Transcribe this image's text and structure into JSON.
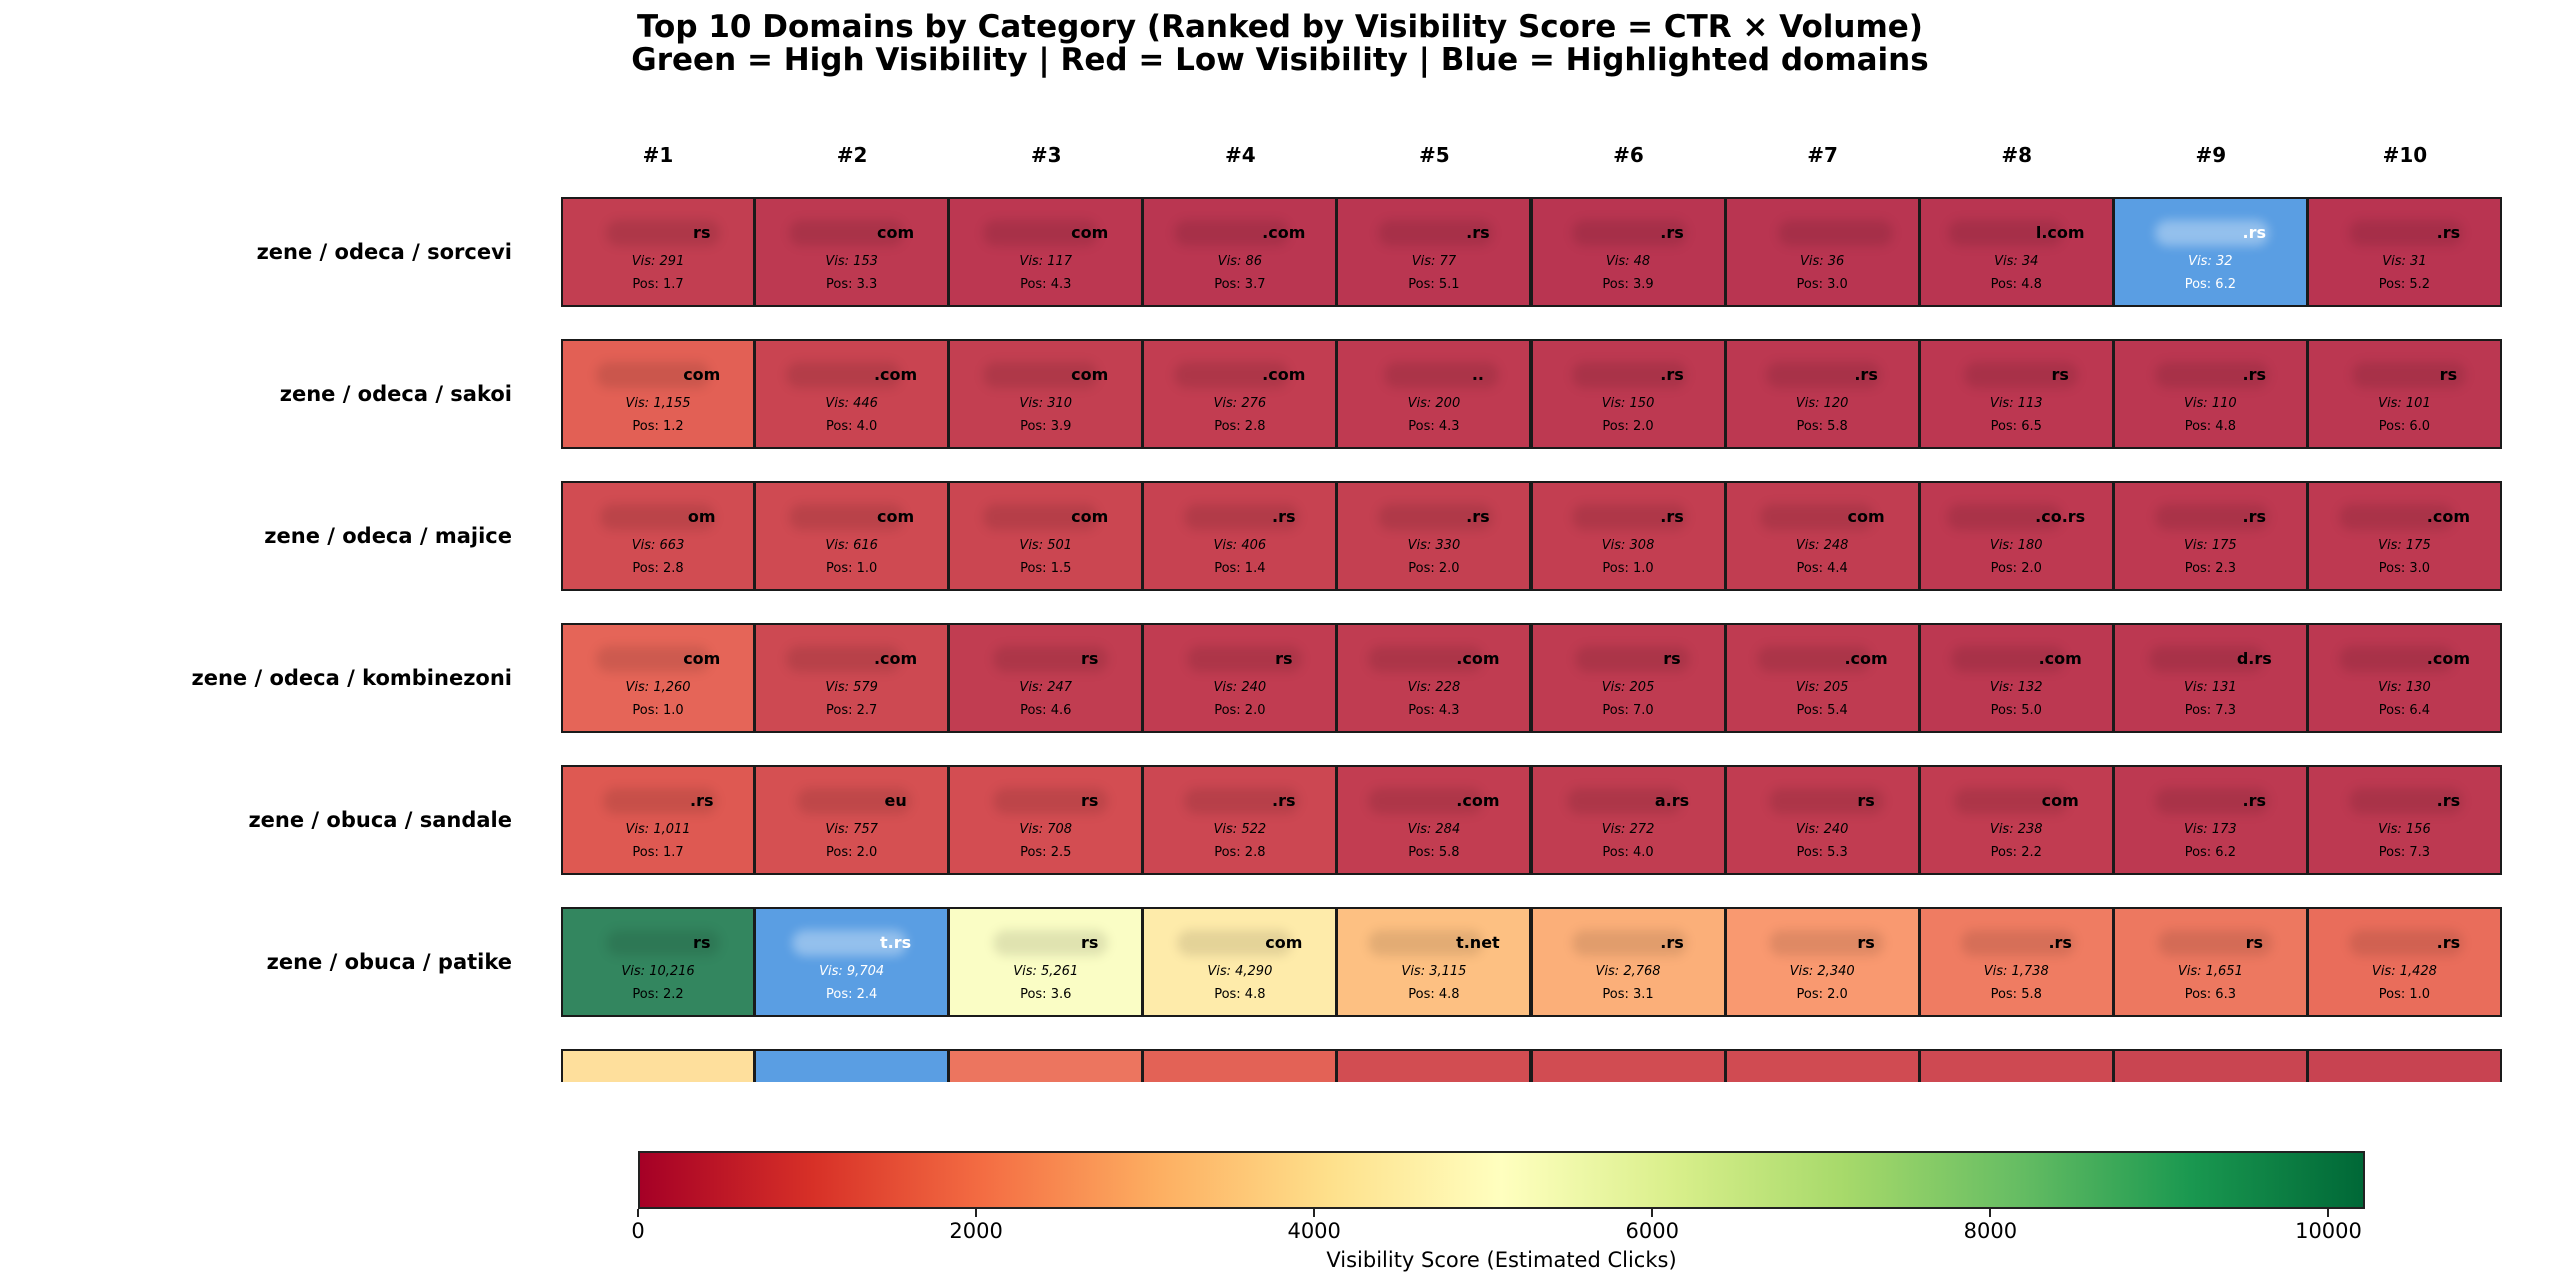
{
  "chart_data": {
    "type": "heatmap",
    "title": "Top 10 Domains by Category (Ranked by Visibility Score = CTR × Volume)",
    "subtitle": "Green = High Visibility | Red = Low Visibility | Blue = Highlighted domains",
    "columns": [
      "#1",
      "#2",
      "#3",
      "#4",
      "#5",
      "#6",
      "#7",
      "#8",
      "#9",
      "#10"
    ],
    "highlight_color": "#5a9ee3",
    "colormap": "RdYlGn",
    "colorbar": {
      "label": "Visibility Score (Estimated Clicks)",
      "range": [
        0,
        10216
      ],
      "ticks": [
        0,
        2000,
        4000,
        6000,
        8000,
        10000
      ],
      "tick_labels": [
        "0",
        "2000",
        "4000",
        "6000",
        "8000",
        "10000"
      ]
    },
    "rows": [
      {
        "label": "zene / odeca / sorcevi",
        "cells": [
          {
            "domain": "rs",
            "vis": 291,
            "vis_text": "Vis: 291",
            "pos_text": "Pos: 1.7",
            "highlight": false
          },
          {
            "domain": "com",
            "vis": 153,
            "vis_text": "Vis: 153",
            "pos_text": "Pos: 3.3",
            "highlight": false
          },
          {
            "domain": "com",
            "vis": 117,
            "vis_text": "Vis: 117",
            "pos_text": "Pos: 4.3",
            "highlight": false
          },
          {
            "domain": ".com",
            "vis": 86,
            "vis_text": "Vis: 86",
            "pos_text": "Pos: 3.7",
            "highlight": false
          },
          {
            "domain": ".rs",
            "vis": 77,
            "vis_text": "Vis: 77",
            "pos_text": "Pos: 5.1",
            "highlight": false
          },
          {
            "domain": ".rs",
            "vis": 48,
            "vis_text": "Vis: 48",
            "pos_text": "Pos: 3.9",
            "highlight": false
          },
          {
            "domain": "",
            "vis": 36,
            "vis_text": "Vis: 36",
            "pos_text": "Pos: 3.0",
            "highlight": false
          },
          {
            "domain": "l.com",
            "vis": 34,
            "vis_text": "Vis: 34",
            "pos_text": "Pos: 4.8",
            "highlight": false
          },
          {
            "domain": ".rs",
            "vis": 32,
            "vis_text": "Vis: 32",
            "pos_text": "Pos: 6.2",
            "highlight": true
          },
          {
            "domain": ".rs",
            "vis": 31,
            "vis_text": "Vis: 31",
            "pos_text": "Pos: 5.2",
            "highlight": false
          }
        ]
      },
      {
        "label": "zene / odeca / sakoi",
        "cells": [
          {
            "domain": "com",
            "vis": 1155,
            "vis_text": "Vis: 1,155",
            "pos_text": "Pos: 1.2",
            "highlight": false
          },
          {
            "domain": ".com",
            "vis": 446,
            "vis_text": "Vis: 446",
            "pos_text": "Pos: 4.0",
            "highlight": false
          },
          {
            "domain": "com",
            "vis": 310,
            "vis_text": "Vis: 310",
            "pos_text": "Pos: 3.9",
            "highlight": false
          },
          {
            "domain": ".com",
            "vis": 276,
            "vis_text": "Vis: 276",
            "pos_text": "Pos: 2.8",
            "highlight": false
          },
          {
            "domain": "..",
            "vis": 200,
            "vis_text": "Vis: 200",
            "pos_text": "Pos: 4.3",
            "highlight": false
          },
          {
            "domain": ".rs",
            "vis": 150,
            "vis_text": "Vis: 150",
            "pos_text": "Pos: 2.0",
            "highlight": false
          },
          {
            "domain": ".rs",
            "vis": 120,
            "vis_text": "Vis: 120",
            "pos_text": "Pos: 5.8",
            "highlight": false
          },
          {
            "domain": "rs",
            "vis": 113,
            "vis_text": "Vis: 113",
            "pos_text": "Pos: 6.5",
            "highlight": false
          },
          {
            "domain": ".rs",
            "vis": 110,
            "vis_text": "Vis: 110",
            "pos_text": "Pos: 4.8",
            "highlight": false
          },
          {
            "domain": "rs",
            "vis": 101,
            "vis_text": "Vis: 101",
            "pos_text": "Pos: 6.0",
            "highlight": false
          }
        ]
      },
      {
        "label": "zene / odeca / majice",
        "cells": [
          {
            "domain": "om",
            "vis": 663,
            "vis_text": "Vis: 663",
            "pos_text": "Pos: 2.8",
            "highlight": false
          },
          {
            "domain": "com",
            "vis": 616,
            "vis_text": "Vis: 616",
            "pos_text": "Pos: 1.0",
            "highlight": false
          },
          {
            "domain": "com",
            "vis": 501,
            "vis_text": "Vis: 501",
            "pos_text": "Pos: 1.5",
            "highlight": false
          },
          {
            "domain": ".rs",
            "vis": 406,
            "vis_text": "Vis: 406",
            "pos_text": "Pos: 1.4",
            "highlight": false
          },
          {
            "domain": ".rs",
            "vis": 330,
            "vis_text": "Vis: 330",
            "pos_text": "Pos: 2.0",
            "highlight": false
          },
          {
            "domain": ".rs",
            "vis": 308,
            "vis_text": "Vis: 308",
            "pos_text": "Pos: 1.0",
            "highlight": false
          },
          {
            "domain": "com",
            "vis": 248,
            "vis_text": "Vis: 248",
            "pos_text": "Pos: 4.4",
            "highlight": false
          },
          {
            "domain": ".co.rs",
            "vis": 180,
            "vis_text": "Vis: 180",
            "pos_text": "Pos: 2.0",
            "highlight": false
          },
          {
            "domain": ".rs",
            "vis": 175,
            "vis_text": "Vis: 175",
            "pos_text": "Pos: 2.3",
            "highlight": false
          },
          {
            "domain": ".com",
            "vis": 175,
            "vis_text": "Vis: 175",
            "pos_text": "Pos: 3.0",
            "highlight": false
          }
        ]
      },
      {
        "label": "zene / odeca / kombinezoni",
        "cells": [
          {
            "domain": "com",
            "vis": 1260,
            "vis_text": "Vis: 1,260",
            "pos_text": "Pos: 1.0",
            "highlight": false
          },
          {
            "domain": ".com",
            "vis": 579,
            "vis_text": "Vis: 579",
            "pos_text": "Pos: 2.7",
            "highlight": false
          },
          {
            "domain": "rs",
            "vis": 247,
            "vis_text": "Vis: 247",
            "pos_text": "Pos: 4.6",
            "highlight": false
          },
          {
            "domain": "rs",
            "vis": 240,
            "vis_text": "Vis: 240",
            "pos_text": "Pos: 2.0",
            "highlight": false
          },
          {
            "domain": ".com",
            "vis": 228,
            "vis_text": "Vis: 228",
            "pos_text": "Pos: 4.3",
            "highlight": false
          },
          {
            "domain": "rs",
            "vis": 205,
            "vis_text": "Vis: 205",
            "pos_text": "Pos: 7.0",
            "highlight": false
          },
          {
            "domain": ".com",
            "vis": 205,
            "vis_text": "Vis: 205",
            "pos_text": "Pos: 5.4",
            "highlight": false
          },
          {
            "domain": ".com",
            "vis": 132,
            "vis_text": "Vis: 132",
            "pos_text": "Pos: 5.0",
            "highlight": false
          },
          {
            "domain": "d.rs",
            "vis": 131,
            "vis_text": "Vis: 131",
            "pos_text": "Pos: 7.3",
            "highlight": false
          },
          {
            "domain": ".com",
            "vis": 130,
            "vis_text": "Vis: 130",
            "pos_text": "Pos: 6.4",
            "highlight": false
          }
        ]
      },
      {
        "label": "zene / obuca / sandale",
        "cells": [
          {
            "domain": ".rs",
            "vis": 1011,
            "vis_text": "Vis: 1,011",
            "pos_text": "Pos: 1.7",
            "highlight": false
          },
          {
            "domain": "eu",
            "vis": 757,
            "vis_text": "Vis: 757",
            "pos_text": "Pos: 2.0",
            "highlight": false
          },
          {
            "domain": "rs",
            "vis": 708,
            "vis_text": "Vis: 708",
            "pos_text": "Pos: 2.5",
            "highlight": false
          },
          {
            "domain": ".rs",
            "vis": 522,
            "vis_text": "Vis: 522",
            "pos_text": "Pos: 2.8",
            "highlight": false
          },
          {
            "domain": ".com",
            "vis": 284,
            "vis_text": "Vis: 284",
            "pos_text": "Pos: 5.8",
            "highlight": false
          },
          {
            "domain": "a.rs",
            "vis": 272,
            "vis_text": "Vis: 272",
            "pos_text": "Pos: 4.0",
            "highlight": false
          },
          {
            "domain": "rs",
            "vis": 240,
            "vis_text": "Vis: 240",
            "pos_text": "Pos: 5.3",
            "highlight": false
          },
          {
            "domain": "com",
            "vis": 238,
            "vis_text": "Vis: 238",
            "pos_text": "Pos: 2.2",
            "highlight": false
          },
          {
            "domain": ".rs",
            "vis": 173,
            "vis_text": "Vis: 173",
            "pos_text": "Pos: 6.2",
            "highlight": false
          },
          {
            "domain": ".rs",
            "vis": 156,
            "vis_text": "Vis: 156",
            "pos_text": "Pos: 7.3",
            "highlight": false
          }
        ]
      },
      {
        "label": "zene / obuca / patike",
        "cells": [
          {
            "domain": "rs",
            "vis": 10216,
            "vis_text": "Vis: 10,216",
            "pos_text": "Pos: 2.2",
            "highlight": false
          },
          {
            "domain": "t.rs",
            "vis": 9704,
            "vis_text": "Vis: 9,704",
            "pos_text": "Pos: 2.4",
            "highlight": true
          },
          {
            "domain": "rs",
            "vis": 5261,
            "vis_text": "Vis: 5,261",
            "pos_text": "Pos: 3.6",
            "highlight": false
          },
          {
            "domain": "com",
            "vis": 4290,
            "vis_text": "Vis: 4,290",
            "pos_text": "Pos: 4.8",
            "highlight": false
          },
          {
            "domain": "t.net",
            "vis": 3115,
            "vis_text": "Vis: 3,115",
            "pos_text": "Pos: 4.8",
            "highlight": false
          },
          {
            "domain": ".rs",
            "vis": 2768,
            "vis_text": "Vis: 2,768",
            "pos_text": "Pos: 3.1",
            "highlight": false
          },
          {
            "domain": "rs",
            "vis": 2340,
            "vis_text": "Vis: 2,340",
            "pos_text": "Pos: 2.0",
            "highlight": false
          },
          {
            "domain": ".rs",
            "vis": 1738,
            "vis_text": "Vis: 1,738",
            "pos_text": "Pos: 5.8",
            "highlight": false
          },
          {
            "domain": "rs",
            "vis": 1651,
            "vis_text": "Vis: 1,651",
            "pos_text": "Pos: 6.3",
            "highlight": false
          },
          {
            "domain": ".rs",
            "vis": 1428,
            "vis_text": "Vis: 1,428",
            "pos_text": "Pos: 1.0",
            "highlight": false
          }
        ]
      },
      {
        "label": "",
        "partial": true,
        "cells": [
          {
            "vis": 3900,
            "highlight": false
          },
          {
            "vis": 3500,
            "highlight": true
          },
          {
            "vis": 1600,
            "highlight": false
          },
          {
            "vis": 1200,
            "highlight": false
          },
          {
            "vis": 700,
            "highlight": false
          },
          {
            "vis": 650,
            "highlight": false
          },
          {
            "vis": 640,
            "highlight": false
          },
          {
            "vis": 600,
            "highlight": false
          },
          {
            "vis": 480,
            "highlight": false
          },
          {
            "vis": 420,
            "highlight": false
          }
        ]
      }
    ]
  }
}
